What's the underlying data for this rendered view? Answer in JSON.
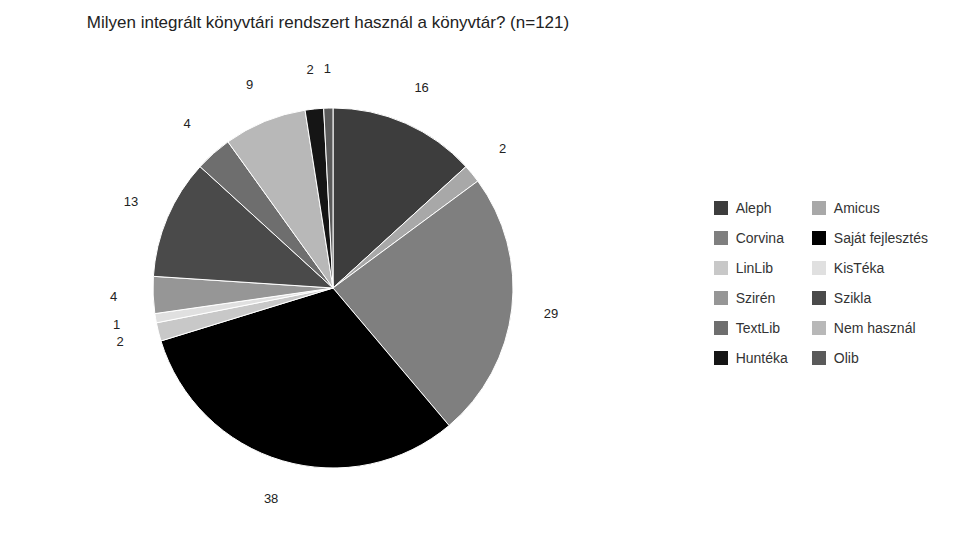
{
  "chart_data": {
    "type": "pie",
    "title": "Milyen integrált könyvtári rendszert használ a könyvtár? (n=121)",
    "categories": [
      "Aleph",
      "Amicus",
      "Corvina",
      "Saját fejlesztés",
      "LinLib",
      "KisTéka",
      "Szirén",
      "Szikla",
      "TextLib",
      "Nem használ",
      "Huntéka",
      "Olib"
    ],
    "values": [
      16,
      2,
      29,
      38,
      2,
      1,
      4,
      13,
      4,
      9,
      2,
      1
    ],
    "colors": [
      "#3d3d3d",
      "#a8a8a8",
      "#7f7f7f",
      "#000000",
      "#c8c8c8",
      "#e0e0e0",
      "#969696",
      "#4a4a4a",
      "#6e6e6e",
      "#b8b8b8",
      "#151515",
      "#5a5a5a"
    ],
    "data_labels": true,
    "legend": "right"
  }
}
